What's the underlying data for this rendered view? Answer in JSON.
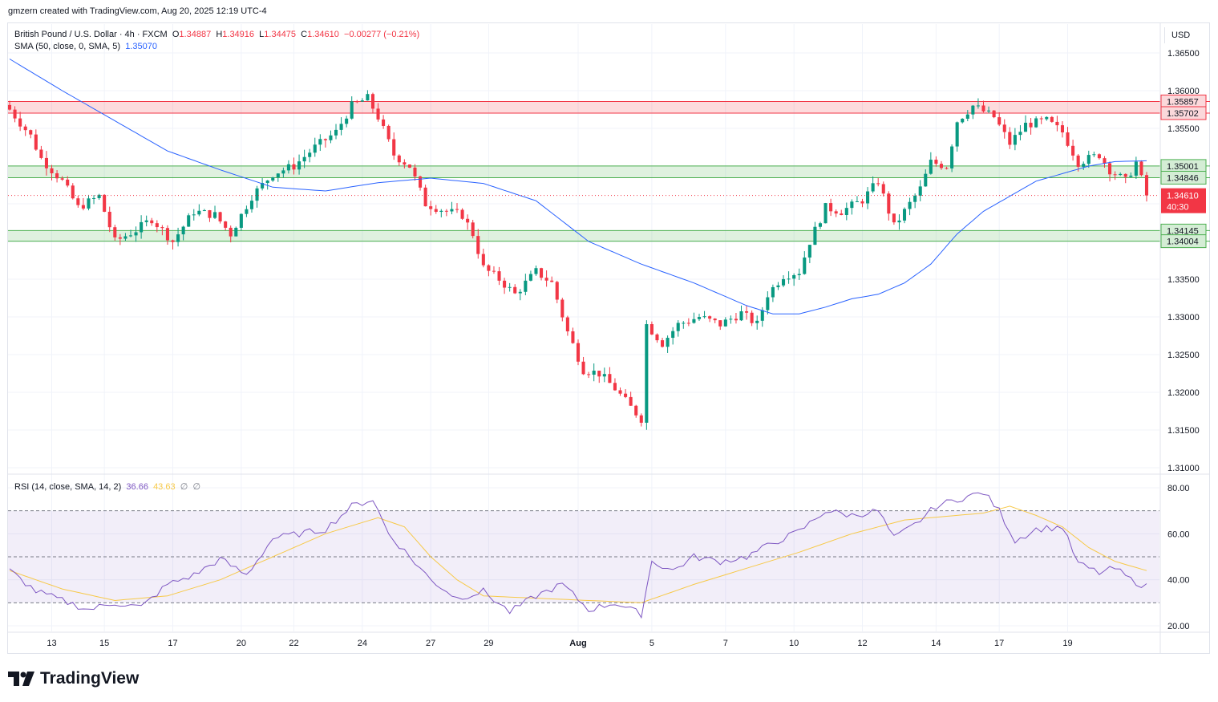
{
  "caption": "gmzern created with TradingView.com, Aug 20, 2025 12:19 UTC-4",
  "brand": "TradingView",
  "currency_button": "USD",
  "legend": {
    "symbol": "British Pound / U.S. Dollar · 4h · FXCM",
    "o_label": "O",
    "o_value": "1.34887",
    "h_label": "H",
    "h_value": "1.34916",
    "l_label": "L",
    "l_value": "1.34475",
    "c_label": "C",
    "c_value": "1.34610",
    "change": "−0.00277 (−0.21%)",
    "sma_label": "SMA (50, close, 0, SMA, 5)",
    "sma_value": "1.35070"
  },
  "rsi_legend": {
    "label": "RSI (14, close, SMA, 14, 2)",
    "rsi_value": "36.66",
    "ma_value": "43.63",
    "extra1": "∅",
    "extra2": "∅"
  },
  "colors": {
    "up": "#089981",
    "down": "#f23645",
    "sma": "#2962ff",
    "rsi": "#7e57c2",
    "rsi_ma": "#f7c948",
    "resistance_zone": "#f23645",
    "support_zone": "#4caf50",
    "grid": "#f0f3fa"
  },
  "chart_data": [
    {
      "type": "candlestick",
      "title": "British Pound / U.S. Dollar · 4h · FXCM",
      "x_ticks": [
        "13",
        "15",
        "17",
        "20",
        "22",
        "24",
        "27",
        "29",
        "Aug",
        "5",
        "7",
        "10",
        "12",
        "14",
        "17",
        "19"
      ],
      "y_ticks": [
        "1.36500",
        "1.36000",
        "1.35500",
        "1.35000",
        "1.34500",
        "1.34000",
        "1.33500",
        "1.33000",
        "1.32500",
        "1.32000",
        "1.31500",
        "1.31000"
      ],
      "ylim": [
        1.3097,
        1.3707
      ],
      "grid": true,
      "last_price": {
        "label": "1.34610",
        "countdown": "40:30"
      },
      "price_labels": [
        {
          "label": "1.35857",
          "value": 1.35857,
          "zone": "resistance"
        },
        {
          "label": "1.35702",
          "value": 1.35702,
          "zone": "resistance"
        },
        {
          "label": "1.35001",
          "value": 1.35001,
          "zone": "support"
        },
        {
          "label": "1.34846",
          "value": 1.34846,
          "zone": "support"
        },
        {
          "label": "1.34145",
          "value": 1.34145,
          "zone": "support"
        },
        {
          "label": "1.34004",
          "value": 1.34004,
          "zone": "support"
        }
      ],
      "zones": [
        {
          "kind": "resistance",
          "from": 1.35702,
          "to": 1.35857
        },
        {
          "kind": "support",
          "from": 1.34846,
          "to": 1.35001
        },
        {
          "kind": "support",
          "from": 1.34004,
          "to": 1.34145
        }
      ],
      "path_anchors": [
        {
          "i": 0,
          "v": 1.3575
        },
        {
          "i": 4,
          "v": 1.354
        },
        {
          "i": 6,
          "v": 1.351
        },
        {
          "i": 10,
          "v": 1.348
        },
        {
          "i": 13,
          "v": 1.3445
        },
        {
          "i": 17,
          "v": 1.346
        },
        {
          "i": 20,
          "v": 1.34
        },
        {
          "i": 24,
          "v": 1.3415
        },
        {
          "i": 27,
          "v": 1.343
        },
        {
          "i": 31,
          "v": 1.34
        },
        {
          "i": 35,
          "v": 1.344
        },
        {
          "i": 39,
          "v": 1.3435
        },
        {
          "i": 42,
          "v": 1.341
        },
        {
          "i": 46,
          "v": 1.346
        },
        {
          "i": 50,
          "v": 1.349
        },
        {
          "i": 54,
          "v": 1.35
        },
        {
          "i": 58,
          "v": 1.3525
        },
        {
          "i": 62,
          "v": 1.3545
        },
        {
          "i": 65,
          "v": 1.358
        },
        {
          "i": 68,
          "v": 1.359
        },
        {
          "i": 70,
          "v": 1.3565
        },
        {
          "i": 73,
          "v": 1.3515
        },
        {
          "i": 76,
          "v": 1.35
        },
        {
          "i": 79,
          "v": 1.345
        },
        {
          "i": 83,
          "v": 1.344
        },
        {
          "i": 86,
          "v": 1.3435
        },
        {
          "i": 88,
          "v": 1.341
        },
        {
          "i": 90,
          "v": 1.3365
        },
        {
          "i": 93,
          "v": 1.335
        },
        {
          "i": 96,
          "v": 1.333
        },
        {
          "i": 100,
          "v": 1.336
        },
        {
          "i": 103,
          "v": 1.3345
        },
        {
          "i": 106,
          "v": 1.328
        },
        {
          "i": 109,
          "v": 1.323
        },
        {
          "i": 112,
          "v": 1.3225
        },
        {
          "i": 115,
          "v": 1.3205
        },
        {
          "i": 118,
          "v": 1.318
        },
        {
          "i": 120,
          "v": 1.3165
        },
        {
          "i": 121,
          "v": 1.329
        },
        {
          "i": 124,
          "v": 1.3265
        },
        {
          "i": 127,
          "v": 1.329
        },
        {
          "i": 131,
          "v": 1.33
        },
        {
          "i": 135,
          "v": 1.329
        },
        {
          "i": 139,
          "v": 1.3305
        },
        {
          "i": 142,
          "v": 1.329
        },
        {
          "i": 144,
          "v": 1.333
        },
        {
          "i": 147,
          "v": 1.3355
        },
        {
          "i": 150,
          "v": 1.336
        },
        {
          "i": 152,
          "v": 1.34
        },
        {
          "i": 155,
          "v": 1.3445
        },
        {
          "i": 158,
          "v": 1.344
        },
        {
          "i": 162,
          "v": 1.3455
        },
        {
          "i": 165,
          "v": 1.348
        },
        {
          "i": 168,
          "v": 1.342
        },
        {
          "i": 170,
          "v": 1.344
        },
        {
          "i": 173,
          "v": 1.347
        },
        {
          "i": 175,
          "v": 1.3505
        },
        {
          "i": 178,
          "v": 1.35
        },
        {
          "i": 180,
          "v": 1.356
        },
        {
          "i": 183,
          "v": 1.358
        },
        {
          "i": 187,
          "v": 1.3565
        },
        {
          "i": 190,
          "v": 1.353
        },
        {
          "i": 193,
          "v": 1.3555
        },
        {
          "i": 197,
          "v": 1.356
        },
        {
          "i": 200,
          "v": 1.3545
        },
        {
          "i": 203,
          "v": 1.3505
        },
        {
          "i": 207,
          "v": 1.3515
        },
        {
          "i": 209,
          "v": 1.3495
        },
        {
          "i": 212,
          "v": 1.348
        },
        {
          "i": 214,
          "v": 1.3505
        },
        {
          "i": 216,
          "v": 1.3461
        }
      ],
      "sma_anchors": [
        {
          "i": 0,
          "v": 1.3642
        },
        {
          "i": 10,
          "v": 1.36
        },
        {
          "i": 20,
          "v": 1.356
        },
        {
          "i": 30,
          "v": 1.352
        },
        {
          "i": 40,
          "v": 1.3495
        },
        {
          "i": 50,
          "v": 1.3472
        },
        {
          "i": 60,
          "v": 1.3467
        },
        {
          "i": 70,
          "v": 1.3478
        },
        {
          "i": 80,
          "v": 1.3484
        },
        {
          "i": 90,
          "v": 1.3477
        },
        {
          "i": 100,
          "v": 1.3454
        },
        {
          "i": 110,
          "v": 1.34
        },
        {
          "i": 120,
          "v": 1.337
        },
        {
          "i": 130,
          "v": 1.3345
        },
        {
          "i": 140,
          "v": 1.3315
        },
        {
          "i": 145,
          "v": 1.3304
        },
        {
          "i": 150,
          "v": 1.3304
        },
        {
          "i": 155,
          "v": 1.3313
        },
        {
          "i": 160,
          "v": 1.3324
        },
        {
          "i": 165,
          "v": 1.333
        },
        {
          "i": 170,
          "v": 1.3345
        },
        {
          "i": 175,
          "v": 1.337
        },
        {
          "i": 180,
          "v": 1.341
        },
        {
          "i": 185,
          "v": 1.344
        },
        {
          "i": 190,
          "v": 1.346
        },
        {
          "i": 195,
          "v": 1.348
        },
        {
          "i": 200,
          "v": 1.349
        },
        {
          "i": 205,
          "v": 1.35
        },
        {
          "i": 210,
          "v": 1.3506
        },
        {
          "i": 216,
          "v": 1.3507
        }
      ],
      "num_bars": 217
    },
    {
      "type": "line",
      "title": "RSI (14, close, SMA, 14, 2)",
      "y_ticks": [
        "80.00",
        "60.00",
        "40.00",
        "20.00"
      ],
      "ylim": [
        17,
        83
      ],
      "bands": {
        "upper": 70,
        "middle": 50,
        "lower": 30
      },
      "series": [
        {
          "name": "RSI",
          "anchors": [
            {
              "i": 0,
              "v": 44
            },
            {
              "i": 5,
              "v": 35
            },
            {
              "i": 10,
              "v": 31
            },
            {
              "i": 15,
              "v": 27
            },
            {
              "i": 20,
              "v": 30
            },
            {
              "i": 25,
              "v": 28
            },
            {
              "i": 30,
              "v": 38
            },
            {
              "i": 35,
              "v": 42
            },
            {
              "i": 40,
              "v": 49
            },
            {
              "i": 45,
              "v": 42
            },
            {
              "i": 50,
              "v": 58
            },
            {
              "i": 55,
              "v": 60
            },
            {
              "i": 60,
              "v": 62
            },
            {
              "i": 65,
              "v": 72
            },
            {
              "i": 69,
              "v": 75
            },
            {
              "i": 72,
              "v": 60
            },
            {
              "i": 76,
              "v": 50
            },
            {
              "i": 80,
              "v": 40
            },
            {
              "i": 85,
              "v": 32
            },
            {
              "i": 90,
              "v": 35
            },
            {
              "i": 95,
              "v": 26
            },
            {
              "i": 100,
              "v": 33
            },
            {
              "i": 105,
              "v": 38
            },
            {
              "i": 110,
              "v": 27
            },
            {
              "i": 115,
              "v": 30
            },
            {
              "i": 120,
              "v": 25
            },
            {
              "i": 122,
              "v": 48
            },
            {
              "i": 126,
              "v": 44
            },
            {
              "i": 130,
              "v": 50
            },
            {
              "i": 135,
              "v": 48
            },
            {
              "i": 140,
              "v": 50
            },
            {
              "i": 145,
              "v": 56
            },
            {
              "i": 150,
              "v": 61
            },
            {
              "i": 155,
              "v": 70
            },
            {
              "i": 160,
              "v": 68
            },
            {
              "i": 165,
              "v": 70
            },
            {
              "i": 168,
              "v": 58
            },
            {
              "i": 172,
              "v": 64
            },
            {
              "i": 176,
              "v": 72
            },
            {
              "i": 180,
              "v": 75
            },
            {
              "i": 185,
              "v": 78
            },
            {
              "i": 188,
              "v": 70
            },
            {
              "i": 191,
              "v": 57
            },
            {
              "i": 195,
              "v": 62
            },
            {
              "i": 200,
              "v": 63
            },
            {
              "i": 203,
              "v": 47
            },
            {
              "i": 207,
              "v": 43
            },
            {
              "i": 210,
              "v": 45
            },
            {
              "i": 213,
              "v": 40
            },
            {
              "i": 216,
              "v": 37
            }
          ]
        },
        {
          "name": "RSI-based MA",
          "anchors": [
            {
              "i": 0,
              "v": 44
            },
            {
              "i": 10,
              "v": 36
            },
            {
              "i": 20,
              "v": 31
            },
            {
              "i": 30,
              "v": 33
            },
            {
              "i": 40,
              "v": 40
            },
            {
              "i": 50,
              "v": 50
            },
            {
              "i": 60,
              "v": 60
            },
            {
              "i": 70,
              "v": 67
            },
            {
              "i": 75,
              "v": 63
            },
            {
              "i": 80,
              "v": 50
            },
            {
              "i": 85,
              "v": 40
            },
            {
              "i": 90,
              "v": 33
            },
            {
              "i": 100,
              "v": 32
            },
            {
              "i": 110,
              "v": 31
            },
            {
              "i": 120,
              "v": 30
            },
            {
              "i": 130,
              "v": 38
            },
            {
              "i": 140,
              "v": 45
            },
            {
              "i": 150,
              "v": 52
            },
            {
              "i": 160,
              "v": 60
            },
            {
              "i": 170,
              "v": 66
            },
            {
              "i": 180,
              "v": 68
            },
            {
              "i": 185,
              "v": 69
            },
            {
              "i": 190,
              "v": 72
            },
            {
              "i": 195,
              "v": 68
            },
            {
              "i": 200,
              "v": 63
            },
            {
              "i": 205,
              "v": 54
            },
            {
              "i": 210,
              "v": 48
            },
            {
              "i": 216,
              "v": 44
            }
          ]
        }
      ]
    }
  ]
}
